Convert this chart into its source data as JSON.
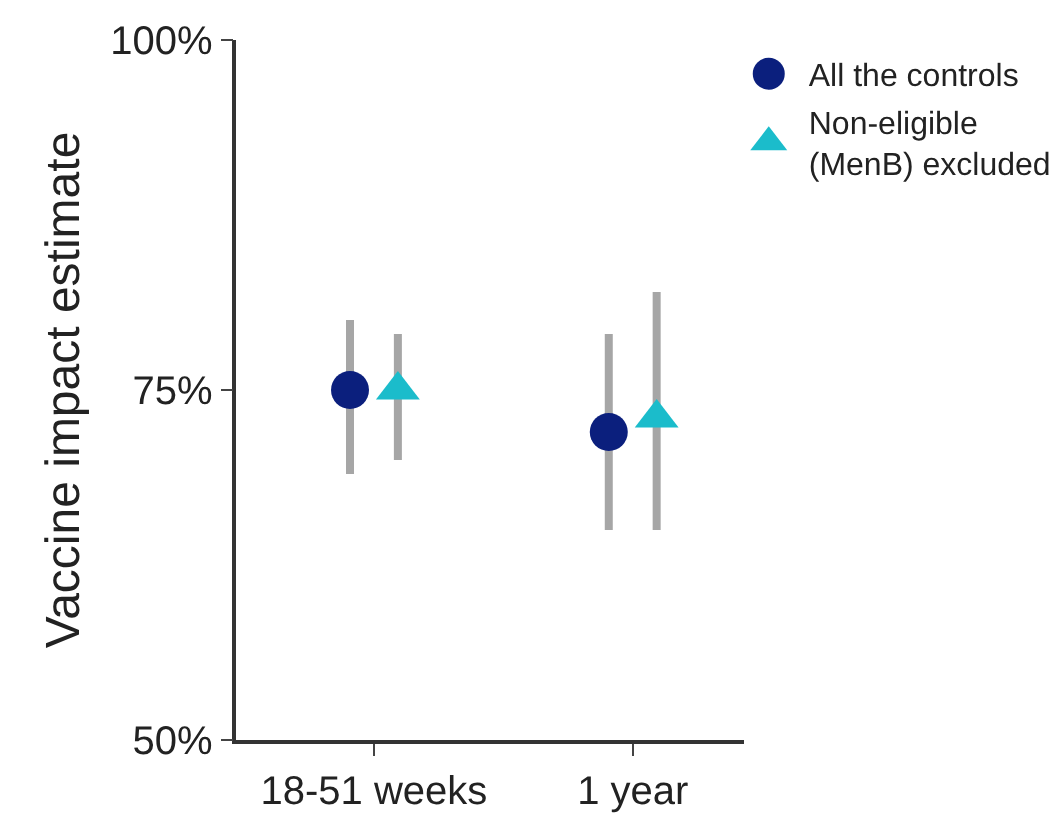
{
  "chart_data": {
    "type": "scatter",
    "ylabel": "Vaccine impact estimate",
    "categories": [
      "18-51 weeks",
      "1 year"
    ],
    "series": [
      {
        "name": "All the controls",
        "color": "#0b1f7d",
        "marker": "circle",
        "values": [
          75,
          72
        ],
        "errors": [
          [
            69,
            80
          ],
          [
            65,
            79
          ]
        ]
      },
      {
        "name": "Non-eligible\n(MenB) excluded",
        "color": "#1bbccb",
        "marker": "triangle",
        "values": [
          75,
          73
        ],
        "errors": [
          [
            70,
            79
          ],
          [
            65,
            82
          ]
        ]
      }
    ],
    "ylim": [
      50,
      100
    ],
    "yticks": [
      {
        "value": 50,
        "label": "50%"
      },
      {
        "value": 75,
        "label": "75%"
      },
      {
        "value": 100,
        "label": "100%"
      }
    ],
    "legend": "top right"
  }
}
